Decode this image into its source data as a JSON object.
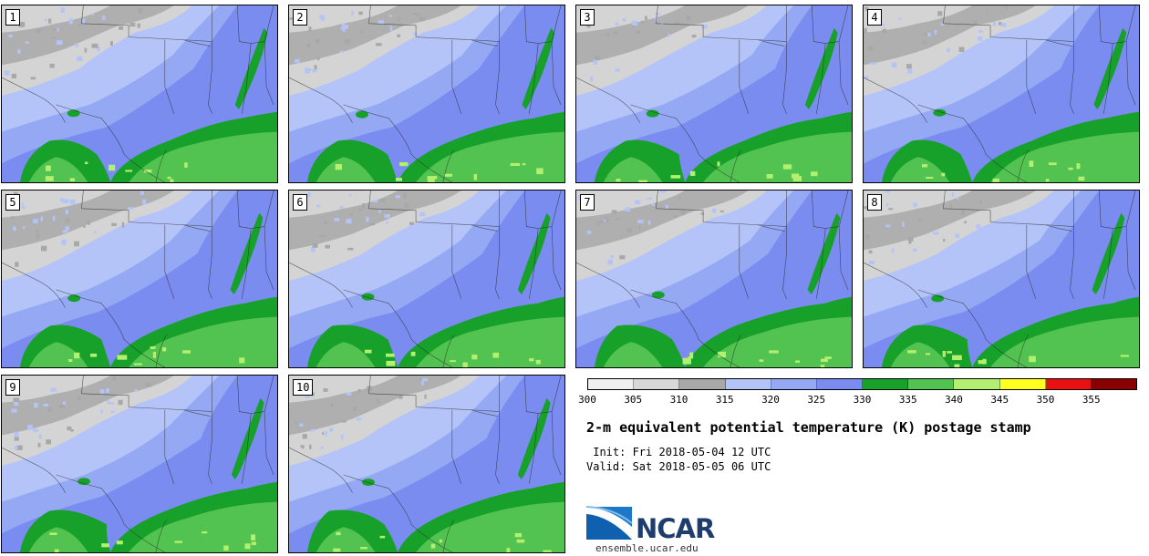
{
  "panels": [
    "1",
    "2",
    "3",
    "4",
    "5",
    "6",
    "7",
    "8",
    "9",
    "10"
  ],
  "colorbar": {
    "ticks": [
      "300",
      "305",
      "310",
      "315",
      "320",
      "325",
      "330",
      "335",
      "340",
      "345",
      "350",
      "355"
    ],
    "colors": [
      "#f0f0f0",
      "#d8d8d8",
      "#a8a8a8",
      "#b4c4f8",
      "#95a8f4",
      "#7b8cf0",
      "#17a02a",
      "#52c250",
      "#b4f070",
      "#ffff20",
      "#e81010",
      "#8a0000"
    ]
  },
  "title": "2-m equivalent potential temperature (K) postage stamp",
  "init": " Init: Fri 2018-05-04 12 UTC",
  "valid": "Valid: Sat 2018-05-05 06 UTC",
  "logo": {
    "text": "NCAR",
    "site": "ensemble.ucar.edu"
  },
  "map_colors": {
    "gray_light": "#d4d4d4",
    "gray_dark": "#a8a8a8",
    "blue_light": "#b4c4f8",
    "blue_mid": "#95a8f4",
    "blue_dark": "#7b8cf0",
    "green_dark": "#17a02a",
    "green_mid": "#52c250",
    "green_light": "#b4f070"
  }
}
